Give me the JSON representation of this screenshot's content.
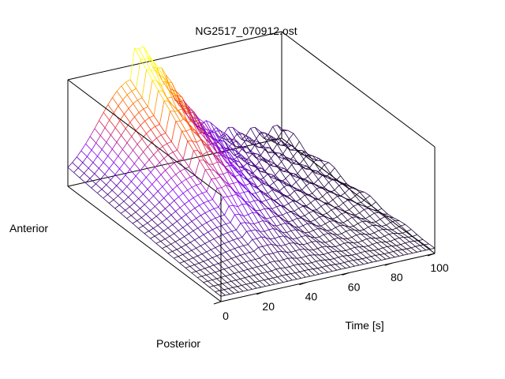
{
  "chart_data": {
    "type": "surface-3d",
    "title": "NG2517_070912.ost",
    "xlabel": "Time [s]",
    "ylabel": "",
    "zlabel": "",
    "xlim": [
      0,
      100
    ],
    "x_ticks": [
      0,
      20,
      40,
      60,
      80,
      100
    ],
    "y_axis_ends": {
      "near": "Posterior",
      "far": "Anterior"
    },
    "grid": false,
    "legend": "none",
    "style": "wireframe mesh colored by height",
    "colormap": [
      "#000000",
      "#8000ff",
      "#ff4000",
      "#ffff00"
    ],
    "surface_model": {
      "description": "single broad peak near early time at anterior end, decaying toward later time and posterior end",
      "peak_time": 30,
      "peak_height": 1.0,
      "baseline": 0.05
    }
  }
}
